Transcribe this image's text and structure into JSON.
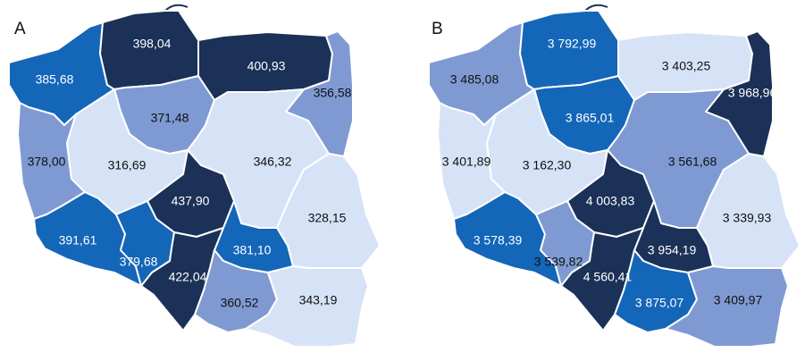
{
  "colors": {
    "darkest": "#1b3157",
    "dark": "#1466b8",
    "mid": "#7f9ad3",
    "light": "#d6e3f7",
    "text_on_dark": "#ffffff",
    "text_on_light": "#111111"
  },
  "panels": [
    {
      "letter": "A",
      "regions": [
        {
          "id": "zachodniopomorskie",
          "value": "385,68",
          "shade": "dark"
        },
        {
          "id": "pomorskie",
          "value": "398,04",
          "shade": "darkest"
        },
        {
          "id": "warminsko-mazurskie",
          "value": "400,93",
          "shade": "darkest"
        },
        {
          "id": "podlaskie",
          "value": "356,58",
          "shade": "mid"
        },
        {
          "id": "kujawsko-pomorskie",
          "value": "371,48",
          "shade": "mid"
        },
        {
          "id": "lubuskie",
          "value": "378,00",
          "shade": "mid"
        },
        {
          "id": "wielkopolskie",
          "value": "316,69",
          "shade": "light"
        },
        {
          "id": "mazowieckie",
          "value": "346,32",
          "shade": "light"
        },
        {
          "id": "lodzkie",
          "value": "437,90",
          "shade": "darkest"
        },
        {
          "id": "lubelskie",
          "value": "328,15",
          "shade": "light"
        },
        {
          "id": "dolnoslaskie",
          "value": "391,61",
          "shade": "dark"
        },
        {
          "id": "opolskie",
          "value": "379,68",
          "shade": "dark"
        },
        {
          "id": "swietokrzyskie",
          "value": "381,10",
          "shade": "dark"
        },
        {
          "id": "slaskie",
          "value": "422,04",
          "shade": "darkest"
        },
        {
          "id": "malopolskie",
          "value": "360,52",
          "shade": "mid"
        },
        {
          "id": "podkarpackie",
          "value": "343,19",
          "shade": "light"
        }
      ]
    },
    {
      "letter": "B",
      "regions": [
        {
          "id": "zachodniopomorskie",
          "value": "3 485,08",
          "shade": "mid"
        },
        {
          "id": "pomorskie",
          "value": "3 792,99",
          "shade": "dark"
        },
        {
          "id": "warminsko-mazurskie",
          "value": "3 403,25",
          "shade": "light"
        },
        {
          "id": "podlaskie",
          "value": "3 968,96",
          "shade": "darkest"
        },
        {
          "id": "kujawsko-pomorskie",
          "value": "3 865,01",
          "shade": "dark"
        },
        {
          "id": "lubuskie",
          "value": "3 401,89",
          "shade": "light"
        },
        {
          "id": "wielkopolskie",
          "value": "3 162,30",
          "shade": "light"
        },
        {
          "id": "mazowieckie",
          "value": "3 561,68",
          "shade": "mid"
        },
        {
          "id": "lodzkie",
          "value": "4 003,83",
          "shade": "darkest"
        },
        {
          "id": "lubelskie",
          "value": "3 339,93",
          "shade": "light"
        },
        {
          "id": "dolnoslaskie",
          "value": "3 578,39",
          "shade": "dark"
        },
        {
          "id": "opolskie",
          "value": "3 539,82",
          "shade": "mid"
        },
        {
          "id": "swietokrzyskie",
          "value": "3 954,19",
          "shade": "darkest"
        },
        {
          "id": "slaskie",
          "value": "4 560,41",
          "shade": "darkest"
        },
        {
          "id": "malopolskie",
          "value": "3 875,07",
          "shade": "dark"
        },
        {
          "id": "podkarpackie",
          "value": "3 409,97",
          "shade": "mid"
        }
      ]
    }
  ]
}
